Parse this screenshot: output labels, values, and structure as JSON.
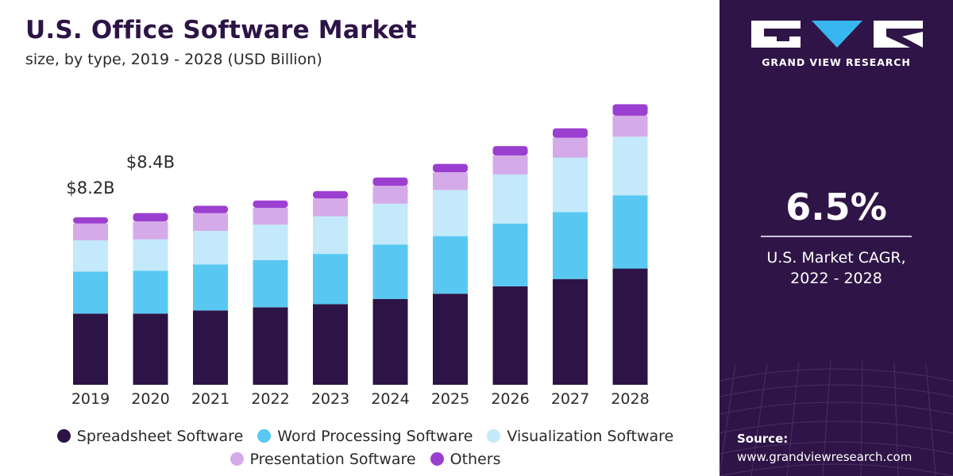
{
  "header": {
    "title": "U.S. Office Software Market",
    "subtitle": "size, by type, 2019 - 2028 (USD Billion)"
  },
  "sidebar": {
    "brand": "GRAND VIEW RESEARCH",
    "cagr_value": "6.5%",
    "cagr_label_line1": "U.S. Market CAGR,",
    "cagr_label_line2": "2022 - 2028",
    "source_label": "Source:",
    "source_url": "www.grandviewresearch.com"
  },
  "colors": {
    "panel": "#2f1547",
    "Spreadsheet Software": "#2d1446",
    "Word Processing Software": "#58c8f2",
    "Visualization Software": "#c3e9fa",
    "Presentation Software": "#d5aae8",
    "Others": "#9b3fd0"
  },
  "chart_data": {
    "type": "bar",
    "stacked": true,
    "categories": [
      "2019",
      "2020",
      "2021",
      "2022",
      "2023",
      "2024",
      "2025",
      "2026",
      "2027",
      "2028"
    ],
    "series": [
      {
        "name": "Spreadsheet Software",
        "values": [
          3.4,
          3.4,
          3.55,
          3.7,
          3.85,
          4.1,
          4.35,
          4.7,
          5.05,
          5.55
        ]
      },
      {
        "name": "Word Processing Software",
        "values": [
          2.0,
          2.05,
          2.2,
          2.25,
          2.4,
          2.6,
          2.75,
          3.0,
          3.2,
          3.5
        ]
      },
      {
        "name": "Visualization Software",
        "values": [
          1.5,
          1.5,
          1.6,
          1.7,
          1.8,
          1.95,
          2.2,
          2.35,
          2.6,
          2.8
        ]
      },
      {
        "name": "Presentation Software",
        "values": [
          0.8,
          0.85,
          0.85,
          0.8,
          0.85,
          0.85,
          0.85,
          0.9,
          0.95,
          1.0
        ]
      },
      {
        "name": "Others",
        "values": [
          0.3,
          0.4,
          0.35,
          0.35,
          0.35,
          0.4,
          0.4,
          0.45,
          0.45,
          0.55
        ]
      }
    ],
    "data_labels": [
      {
        "category": "2019",
        "text": "$8.2B"
      },
      {
        "category": "2020",
        "text": "$8.4B"
      }
    ],
    "ylim": [
      0,
      14.4
    ],
    "grid": false,
    "legend_position": "bottom"
  }
}
